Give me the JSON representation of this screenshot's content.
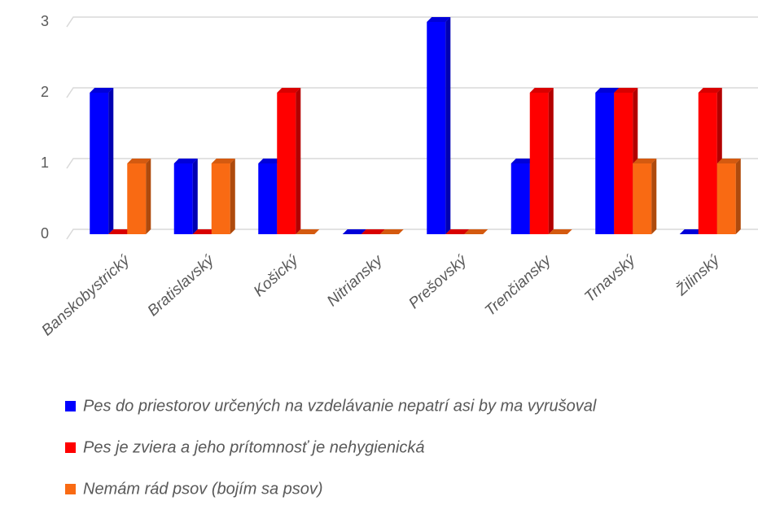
{
  "chart_data": {
    "type": "bar3d",
    "categories": [
      "Banskobystrický",
      "Bratislavský",
      "Košický",
      "Nitriansky",
      "Prešovský",
      "Trenčiansky",
      "Trnavský",
      "Žilinský"
    ],
    "series": [
      {
        "name": "Pes do priestorov určených na vzdelávanie nepatrí asi by ma vyrušoval",
        "color": "#0000ff",
        "values": [
          2,
          1,
          1,
          0,
          3,
          1,
          2,
          0
        ]
      },
      {
        "name": "Pes je zviera a jeho prítomnosť je nehygienická",
        "color": "#ff0000",
        "values": [
          0,
          0,
          2,
          0,
          0,
          2,
          2,
          2
        ]
      },
      {
        "name": "Nemám rád psov (bojím sa psov)",
        "color": "#f96a13",
        "values": [
          1,
          1,
          0,
          0,
          0,
          0,
          1,
          1
        ]
      }
    ],
    "ylim": [
      0,
      3
    ],
    "yticks": [
      0,
      1,
      2,
      3
    ],
    "grid": true,
    "legend": "bottom"
  }
}
